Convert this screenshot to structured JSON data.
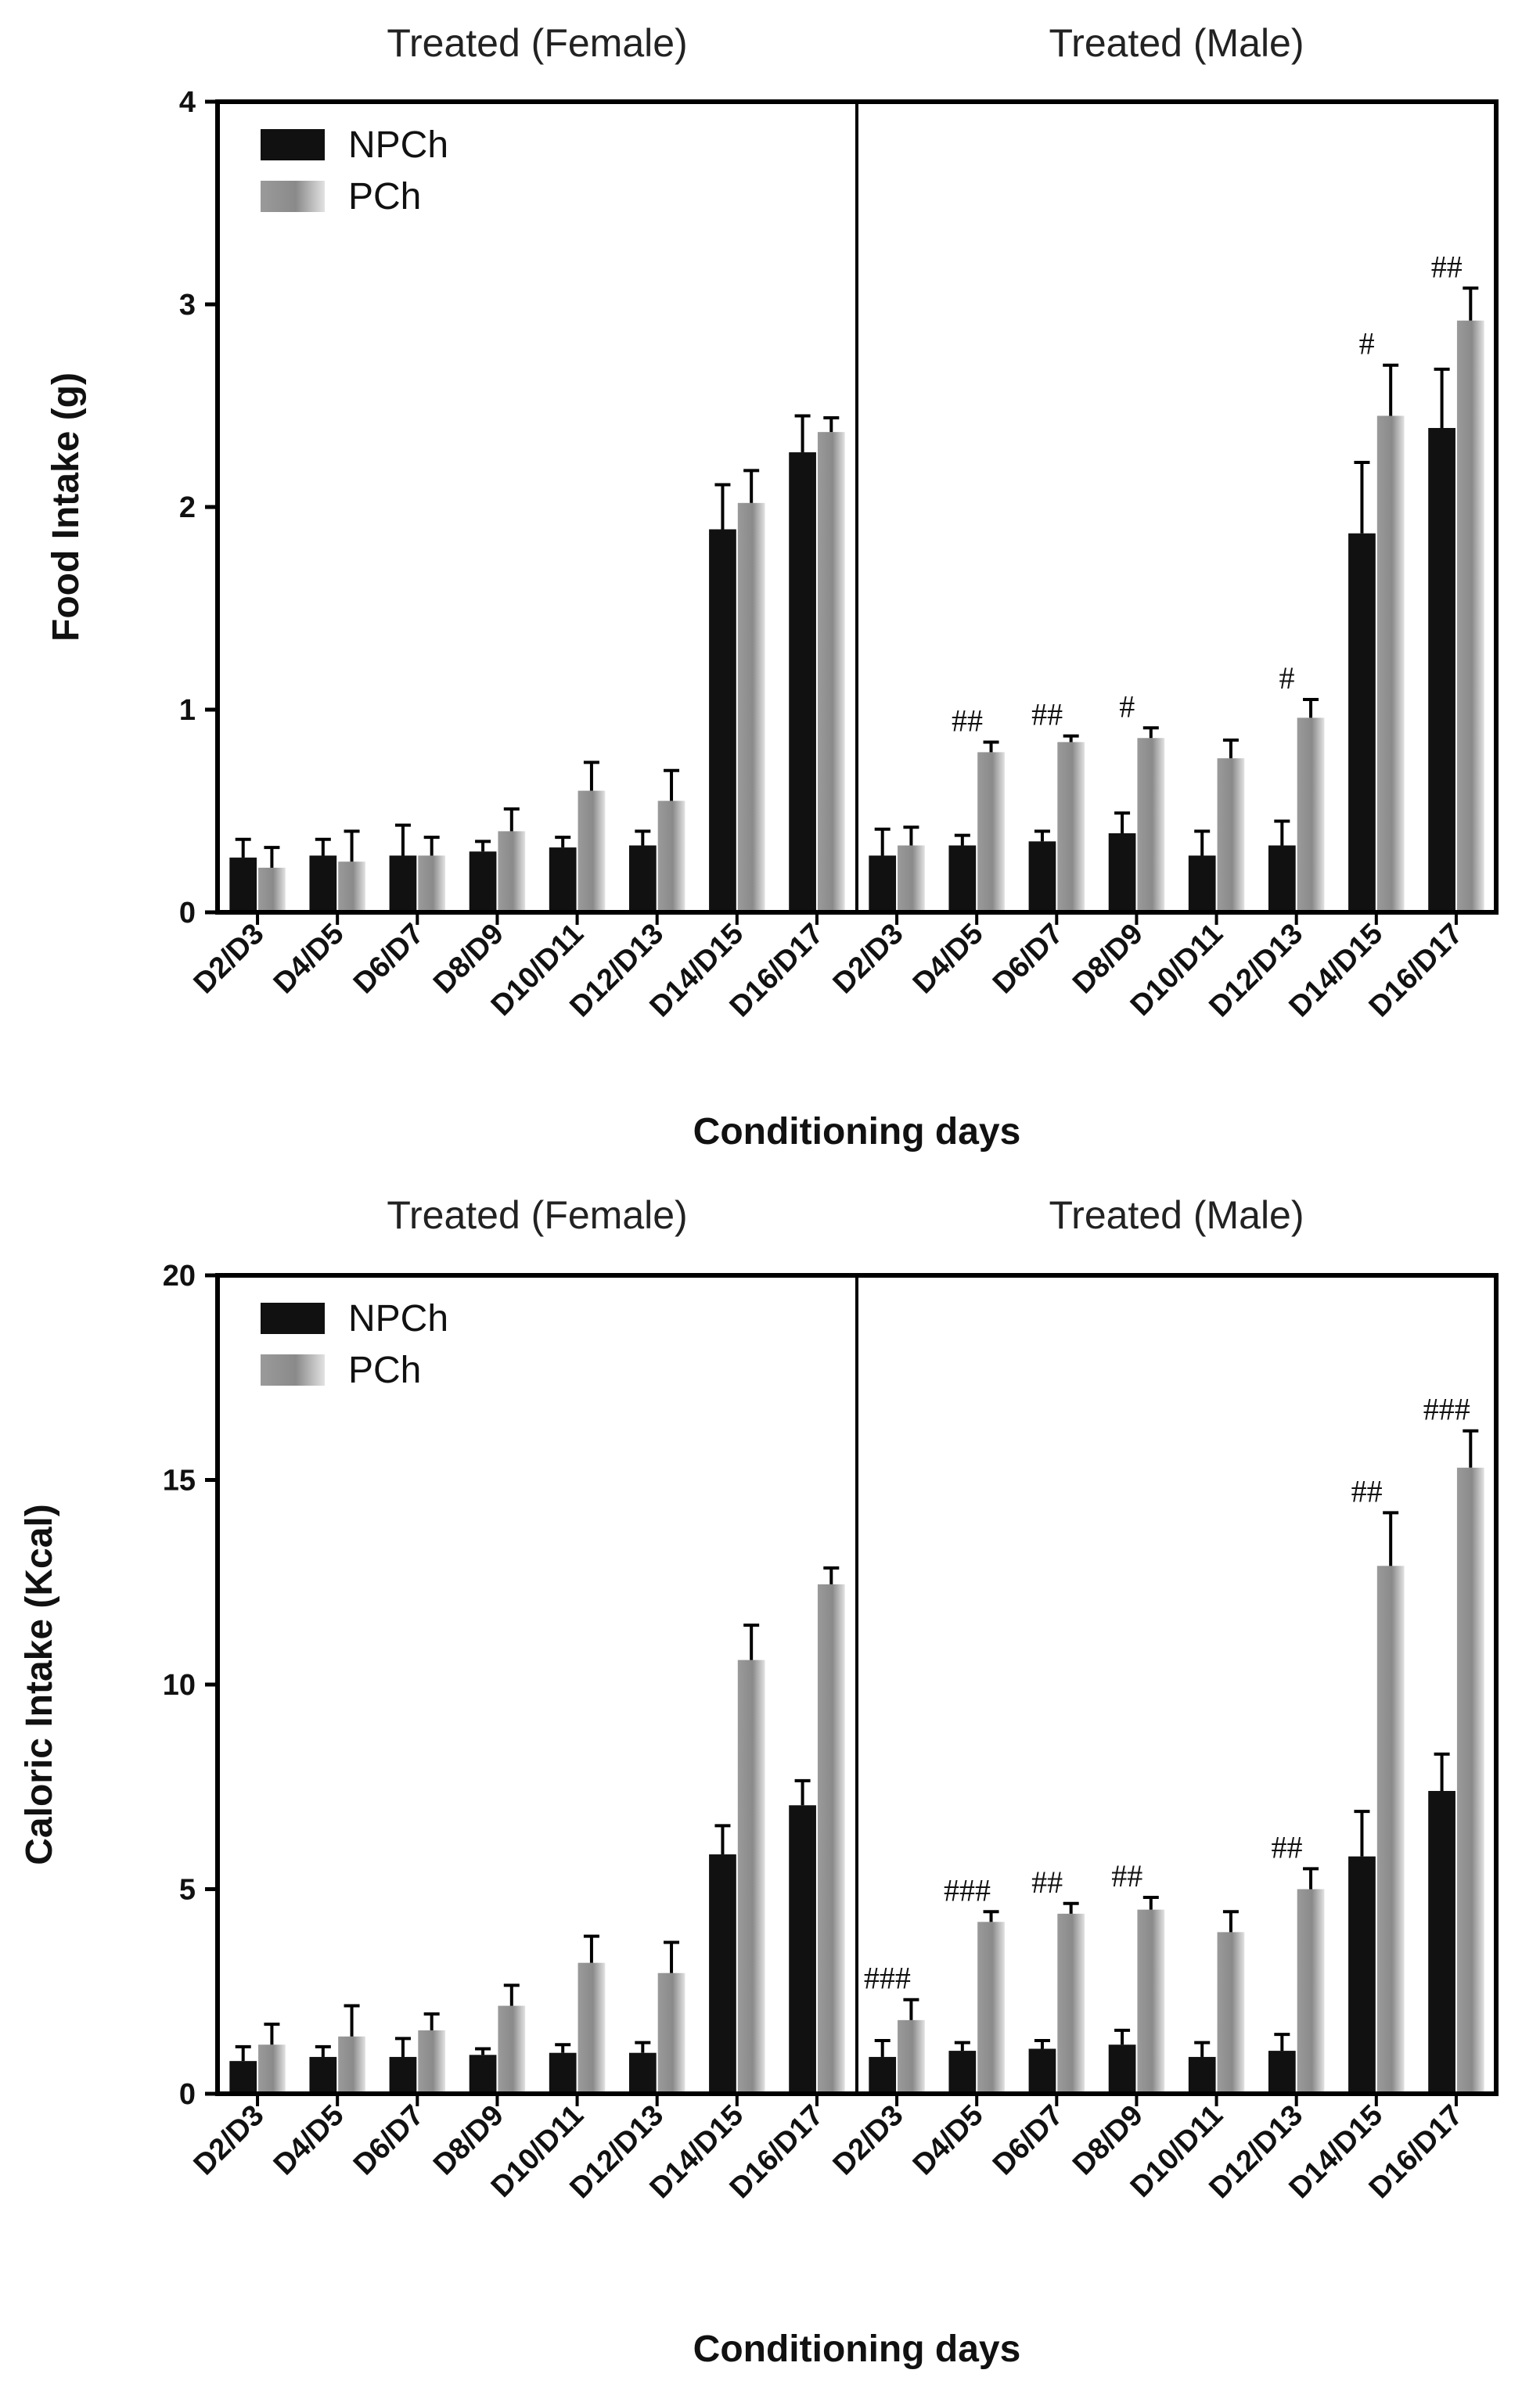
{
  "colors": {
    "npch": "#111111",
    "pch": "#8c8c8c",
    "pch_light": "#dcdcdc",
    "axis": "#000000"
  },
  "chart_data": [
    {
      "type": "bar",
      "ylabel": "Food Intake (g)",
      "xlabel": "Conditioning days",
      "ylim": [
        0,
        4
      ],
      "yticks": [
        0,
        1,
        2,
        3,
        4
      ],
      "grid": false,
      "legend_position": "top-left",
      "legend": [
        "NPCh",
        "PCh"
      ],
      "panels": [
        {
          "title": "Treated (Female)",
          "categories": [
            "D2/D3",
            "D4/D5",
            "D6/D7",
            "D8/D9",
            "D10/D11",
            "D12/D13",
            "D14/D15",
            "D16/D17"
          ],
          "series": [
            {
              "name": "NPCh",
              "values": [
                0.27,
                0.28,
                0.28,
                0.3,
                0.32,
                0.33,
                1.89,
                2.27
              ],
              "errors": [
                0.09,
                0.08,
                0.15,
                0.05,
                0.05,
                0.07,
                0.22,
                0.18
              ]
            },
            {
              "name": "PCh",
              "values": [
                0.22,
                0.25,
                0.28,
                0.4,
                0.6,
                0.55,
                2.02,
                2.37
              ],
              "errors": [
                0.1,
                0.15,
                0.09,
                0.11,
                0.14,
                0.15,
                0.16,
                0.07
              ]
            }
          ],
          "annotations": [
            "",
            "",
            "",
            "",
            "",
            "",
            "",
            ""
          ]
        },
        {
          "title": "Treated (Male)",
          "categories": [
            "D2/D3",
            "D4/D5",
            "D6/D7",
            "D8/D9",
            "D10/D11",
            "D12/D13",
            "D14/D15",
            "D16/D17"
          ],
          "series": [
            {
              "name": "NPCh",
              "values": [
                0.28,
                0.33,
                0.35,
                0.39,
                0.28,
                0.33,
                1.87,
                2.39
              ],
              "errors": [
                0.13,
                0.05,
                0.05,
                0.1,
                0.12,
                0.12,
                0.35,
                0.29
              ]
            },
            {
              "name": "PCh",
              "values": [
                0.33,
                0.79,
                0.84,
                0.86,
                0.76,
                0.96,
                2.45,
                2.92
              ],
              "errors": [
                0.09,
                0.05,
                0.03,
                0.05,
                0.09,
                0.09,
                0.25,
                0.16
              ]
            }
          ],
          "annotations": [
            "",
            "##",
            "##",
            "#",
            "",
            "#",
            "#",
            "##"
          ]
        }
      ]
    },
    {
      "type": "bar",
      "ylabel": "Caloric Intake (Kcal)",
      "xlabel": "Conditioning days",
      "ylim": [
        0,
        20
      ],
      "yticks": [
        0,
        5,
        10,
        15,
        20
      ],
      "grid": false,
      "legend_position": "top-left",
      "legend": [
        "NPCh",
        "PCh"
      ],
      "panels": [
        {
          "title": "Treated (Female)",
          "categories": [
            "D2/D3",
            "D4/D5",
            "D6/D7",
            "D8/D9",
            "D10/D11",
            "D12/D13",
            "D14/D15",
            "D16/D17"
          ],
          "series": [
            {
              "name": "NPCh",
              "values": [
                0.8,
                0.9,
                0.9,
                0.95,
                1.0,
                1.0,
                5.85,
                7.05
              ],
              "errors": [
                0.35,
                0.25,
                0.45,
                0.15,
                0.2,
                0.25,
                0.7,
                0.6
              ]
            },
            {
              "name": "PCh",
              "values": [
                1.2,
                1.4,
                1.55,
                2.15,
                3.2,
                2.95,
                10.6,
                12.45
              ],
              "errors": [
                0.5,
                0.75,
                0.4,
                0.5,
                0.65,
                0.75,
                0.85,
                0.4
              ]
            }
          ],
          "annotations": [
            "",
            "",
            "",
            "",
            "",
            "",
            "",
            ""
          ]
        },
        {
          "title": "Treated (Male)",
          "categories": [
            "D2/D3",
            "D4/D5",
            "D6/D7",
            "D8/D9",
            "D10/D11",
            "D12/D13",
            "D14/D15",
            "D16/D17"
          ],
          "series": [
            {
              "name": "NPCh",
              "values": [
                0.9,
                1.05,
                1.1,
                1.2,
                0.9,
                1.05,
                5.8,
                7.4
              ],
              "errors": [
                0.4,
                0.2,
                0.2,
                0.35,
                0.35,
                0.4,
                1.1,
                0.9
              ]
            },
            {
              "name": "PCh",
              "values": [
                1.8,
                4.2,
                4.4,
                4.5,
                3.95,
                5.0,
                12.9,
                15.3
              ],
              "errors": [
                0.5,
                0.25,
                0.25,
                0.3,
                0.5,
                0.5,
                1.3,
                0.9
              ]
            }
          ],
          "annotations": [
            "###",
            "###",
            "##",
            "##",
            "",
            "##",
            "##",
            "###"
          ]
        }
      ]
    }
  ]
}
